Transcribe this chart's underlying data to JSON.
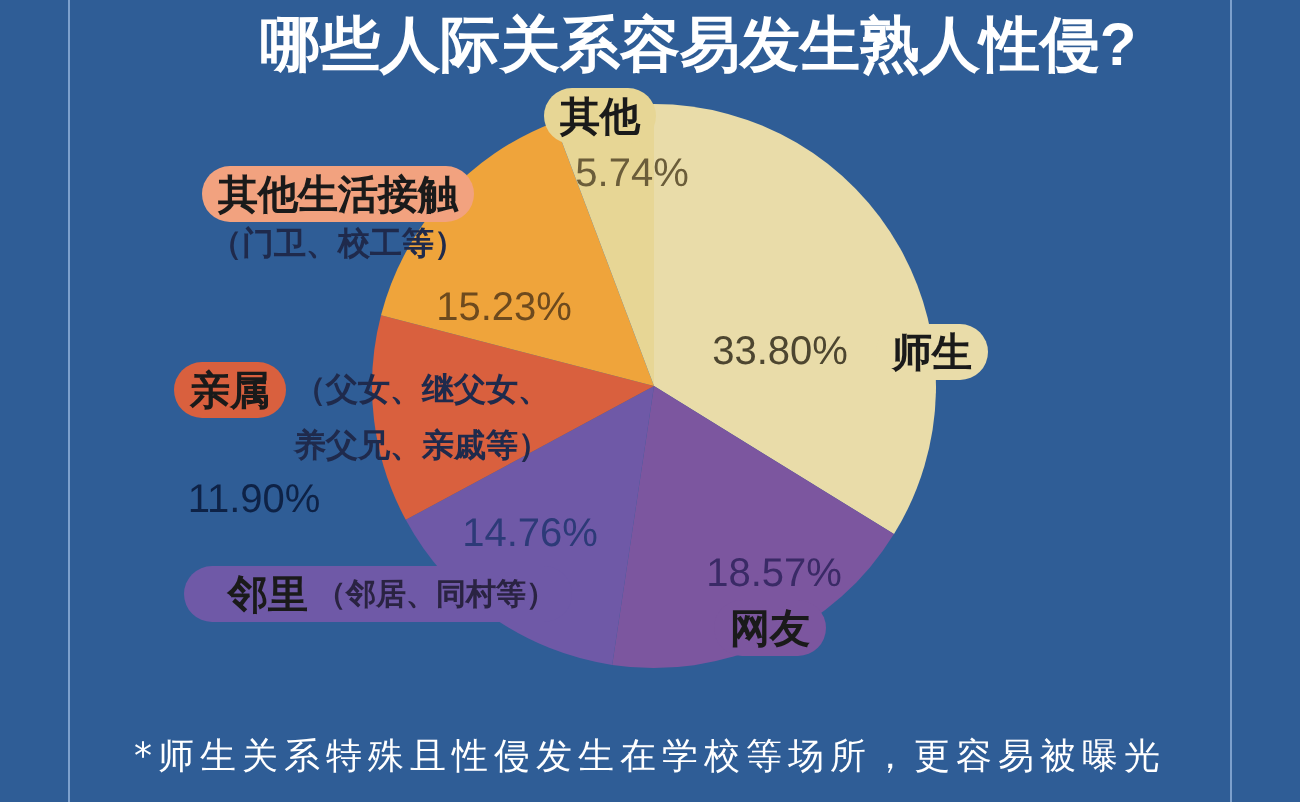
{
  "chart_data": {
    "type": "pie",
    "title": "哪些人际关系容易发生熟人性侵?",
    "categories": [
      "师生",
      "网友",
      "邻里",
      "亲属",
      "其他生活接触",
      "其他"
    ],
    "values": [
      33.8,
      18.57,
      14.76,
      11.9,
      15.23,
      5.74
    ],
    "colors": [
      "#e9dca9",
      "#7c569f",
      "#6f59a7",
      "#d9603e",
      "#efa43b",
      "#e7d695"
    ],
    "value_labels": [
      "33.80%",
      "18.57%",
      "14.76%",
      "11.90%",
      "15.23%",
      "5.74%"
    ],
    "annotations": [
      {
        "text": "（邻居、同村等）",
        "x": "邻里"
      },
      {
        "text": "（父女、继父女、养父兄、亲戚等）",
        "x": "亲属"
      },
      {
        "text": "（门卫、校工等）",
        "x": "其他生活接触"
      },
      "*师生关系特殊且性侵发生在学校等场所，更容易被曝光"
    ]
  }
}
